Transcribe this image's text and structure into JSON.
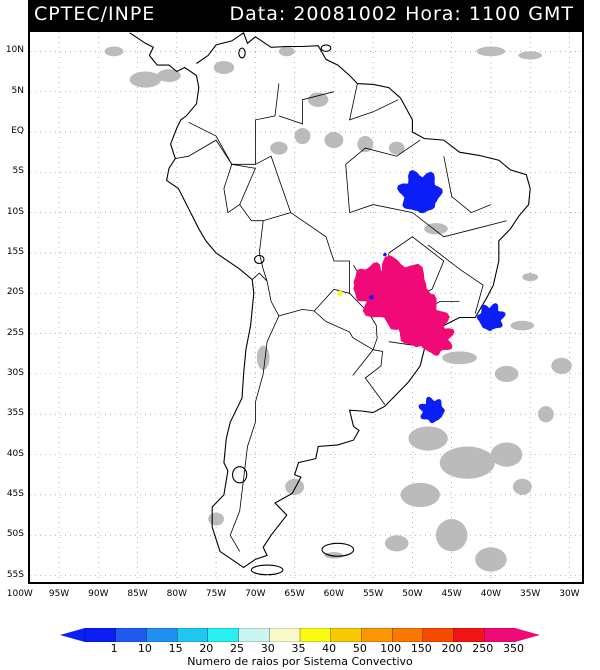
{
  "header": {
    "source": "CPTEC/INPE",
    "date_time": "Data: 20081002 Hora: 1100 GMT"
  },
  "map": {
    "lat_labels": [
      "10N",
      "5N",
      "EQ",
      "5S",
      "10S",
      "15S",
      "20S",
      "25S",
      "30S",
      "35S",
      "40S",
      "45S",
      "50S",
      "55S"
    ],
    "lon_labels": [
      "100W",
      "95W",
      "90W",
      "85W",
      "80W",
      "75W",
      "70W",
      "65W",
      "60W",
      "55W",
      "50W",
      "45W",
      "40W",
      "35W",
      "30W"
    ],
    "lon_range": [
      -100,
      -28
    ],
    "lat_range": [
      -56,
      12
    ],
    "grid": true
  },
  "colorbar": {
    "labels": [
      "1",
      "10",
      "15",
      "20",
      "25",
      "30",
      "35",
      "40",
      "50",
      "100",
      "150",
      "200",
      "250",
      "350"
    ],
    "colors": [
      "#0a1ef5",
      "#1e5af0",
      "#1e90f0",
      "#1ec8f0",
      "#28f0f0",
      "#c8f5f0",
      "#fafac8",
      "#fafa14",
      "#fac800",
      "#fa9600",
      "#fa7800",
      "#f54b00",
      "#f01414",
      "#f00a78"
    ],
    "title": "Numero de raios por Sistema Convectivo"
  },
  "features": {
    "cloud_color": "#b0b0b0",
    "cell_colors": {
      "low": "#0a1ef5",
      "high": "#f00a78",
      "mid": "#fafa14"
    }
  }
}
